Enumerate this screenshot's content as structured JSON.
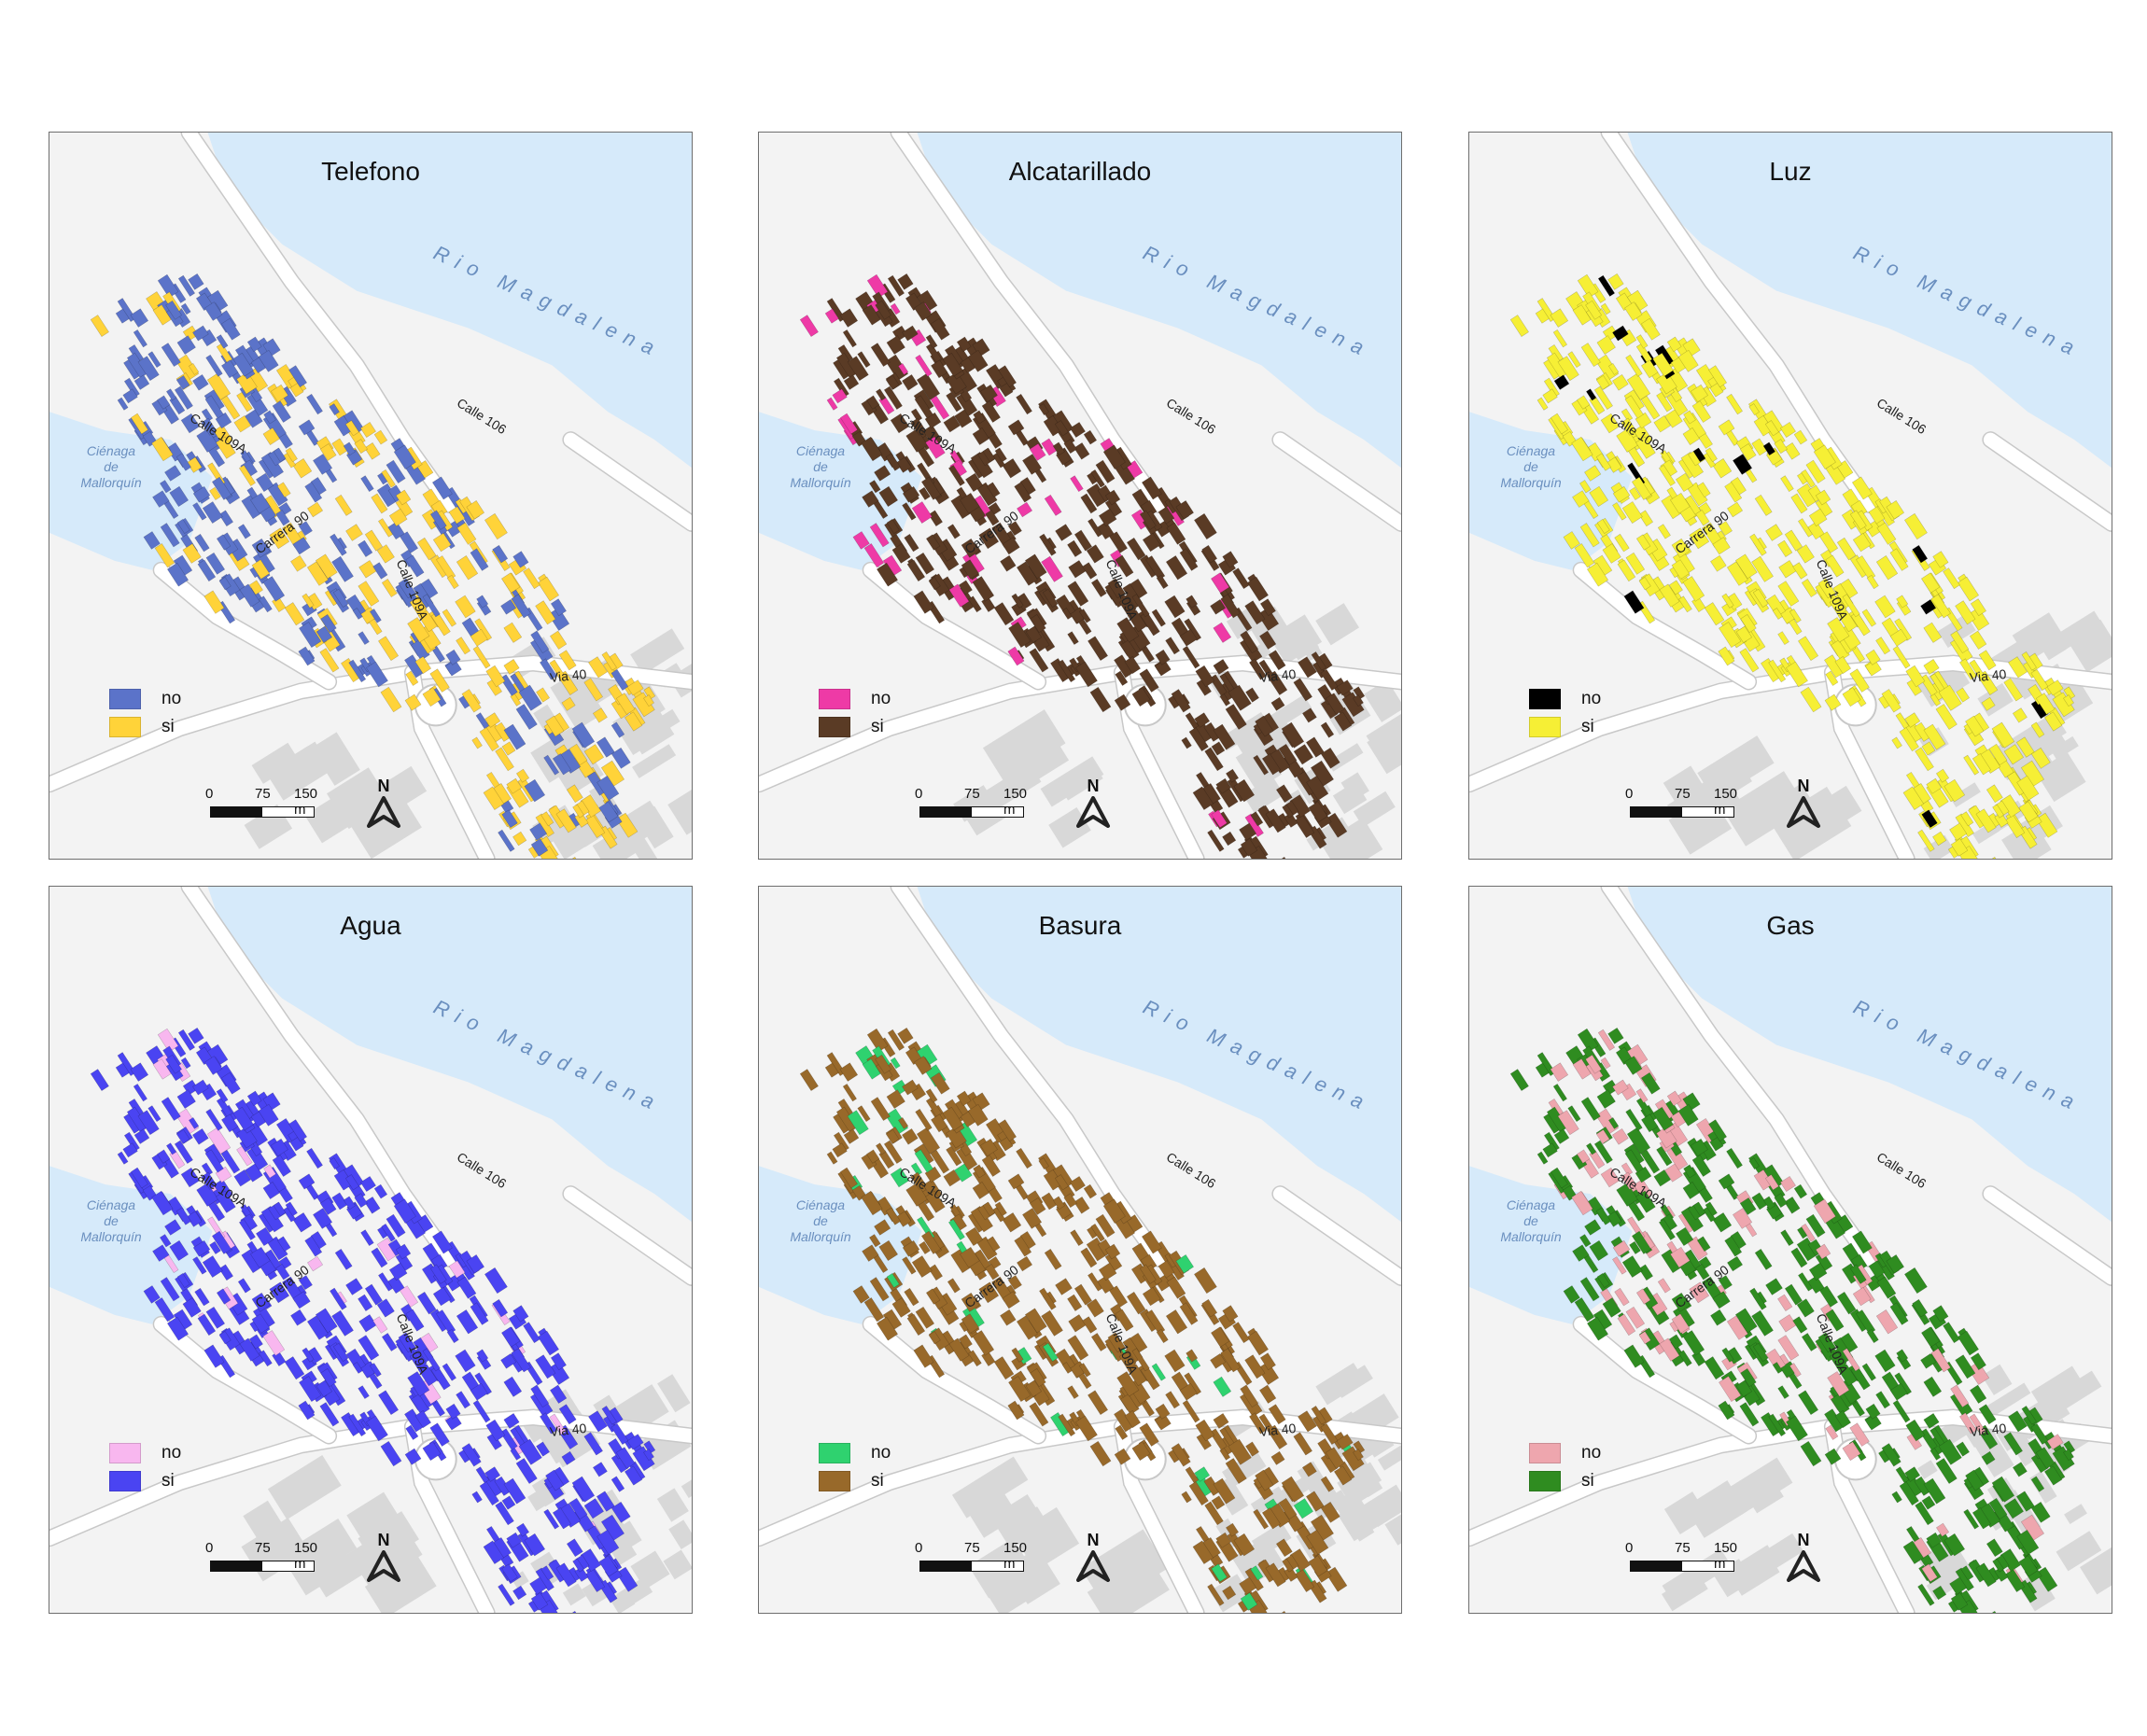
{
  "labels": {
    "river": "Rio Magdalena",
    "lagoon": [
      "Ciénaga",
      "de",
      "Mallorquín"
    ],
    "street_calle109a": "Calle 109A",
    "street_calle106": "Calle 106",
    "street_carrera90": "Carrera 90",
    "street_calle109": "Calle 109A",
    "street_via40": "Via 40",
    "north": "N",
    "scale": [
      "0",
      "75",
      "150 m"
    ]
  },
  "panels": [
    {
      "title": "Telefono",
      "legend": [
        {
          "label": "no",
          "color": "#5b73c9"
        },
        {
          "label": "si",
          "color": "#ffd339"
        }
      ],
      "no_share": 0.5
    },
    {
      "title": "Alcatarillado",
      "legend": [
        {
          "label": "no",
          "color": "#ee3aa6"
        },
        {
          "label": "si",
          "color": "#5a3b25"
        }
      ],
      "no_share": 0.1
    },
    {
      "title": "Luz",
      "legend": [
        {
          "label": "no",
          "color": "#000000"
        },
        {
          "label": "si",
          "color": "#f6ef35"
        }
      ],
      "no_share": 0.04
    },
    {
      "title": "Agua",
      "legend": [
        {
          "label": "no",
          "color": "#f8b7ef"
        },
        {
          "label": "si",
          "color": "#4a44f2"
        }
      ],
      "no_share": 0.04
    },
    {
      "title": "Basura",
      "legend": [
        {
          "label": "no",
          "color": "#2fd26f"
        },
        {
          "label": "si",
          "color": "#98692a"
        }
      ],
      "no_share": 0.07
    },
    {
      "title": "Gas",
      "legend": [
        {
          "label": "no",
          "color": "#eea6ae"
        },
        {
          "label": "si",
          "color": "#2f8c20"
        }
      ],
      "no_share": 0.2
    }
  ],
  "map_colors": {
    "water": "#d6eafa",
    "land": "#f3f3f3",
    "road": "#ffffff",
    "road_edge": "#c8c8c8",
    "block_gray": "#d8d8d8"
  }
}
